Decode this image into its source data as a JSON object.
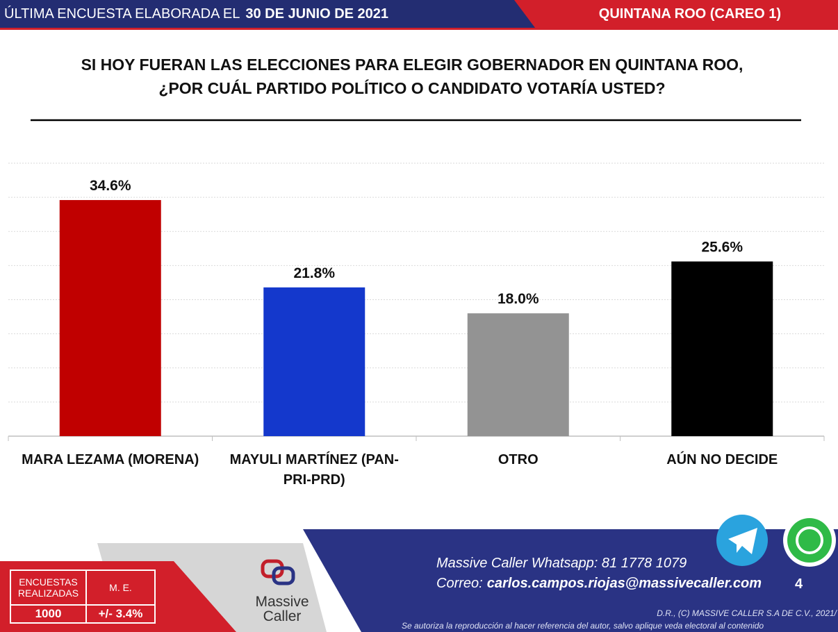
{
  "header": {
    "lead": "ÚLTIMA ENCUESTA ELABORADA EL",
    "date": "30 DE JUNIO DE 2021",
    "region": "QUINTANA ROO (CAREO 1)"
  },
  "chart_data": {
    "type": "bar",
    "title": [
      "SI HOY FUERAN LAS ELECCIONES PARA ELEGIR GOBERNADOR EN QUINTANA ROO,",
      "¿POR CUÁL PARTIDO POLÍTICO O CANDIDATO VOTARÍA USTED?"
    ],
    "categories": [
      "MARA LEZAMA (MORENA)",
      "MAYULI MARTÍNEZ (PAN-PRI-PRD)",
      "OTRO",
      "AÚN NO DECIDE"
    ],
    "values": [
      34.6,
      21.8,
      18.0,
      25.6
    ],
    "value_labels": [
      "34.6%",
      "21.8%",
      "18.0%",
      "25.6%"
    ],
    "colors": [
      "#c00000",
      "#1438cc",
      "#939393",
      "#000000"
    ],
    "ylim": [
      0,
      40
    ],
    "yticks": [
      0,
      5,
      10,
      15,
      20,
      25,
      30,
      35,
      40
    ],
    "grid": true
  },
  "footer": {
    "table": {
      "headers": [
        "ENCUESTAS REALIZADAS",
        "M. E."
      ],
      "row": [
        1000,
        "+/- 3.4%"
      ]
    },
    "logo": [
      "Massive",
      "Caller"
    ],
    "whatsapp_label": "Massive Caller Whatsapp:",
    "whatsapp": "81 1778 1079",
    "email_label": "Correo:",
    "email": "carlos.campos.riojas@massivecaller.com",
    "page": 4,
    "copyright": "D.R., (C) MASSIVE CALLER S.A DE C.V., 2021/",
    "notice": "Se autoriza la reproducción al hacer referencia del autor, salvo aplique veda electoral al contenido"
  }
}
